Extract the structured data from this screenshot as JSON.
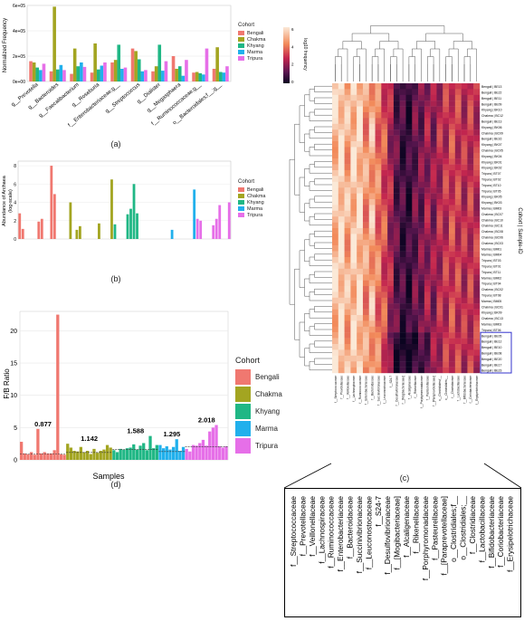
{
  "captions": {
    "a": "(a)",
    "b": "(b)",
    "c": "(c)",
    "d": "(d)"
  },
  "colors": {
    "Bengali": "#f07870",
    "Chakma": "#a3a521",
    "Khyang": "#20b785",
    "Marma": "#21b0ec",
    "Tripura": "#e66fe8",
    "dendro": "#555555",
    "highlight": "#3333cc"
  },
  "cohort_legend": {
    "title": "Cohort",
    "items": [
      "Bengali",
      "Chakma",
      "Khyang",
      "Marma",
      "Tripura"
    ]
  },
  "heat_legend": {
    "title": "log10 frequency",
    "ticks": [
      "6",
      "4",
      "2",
      "0"
    ]
  },
  "heat_axis_title": "Cohort | Sample-ID",
  "chart_data": [
    {
      "id": "a",
      "type": "bar",
      "ylabel": "Normalized Frequency",
      "yticks": [
        "0e+00",
        "2e+05",
        "4e+05",
        "6e+05"
      ],
      "ylim": [
        0,
        600000
      ],
      "categories": [
        "g__Prevotella",
        "g__Bacteroides",
        "g__Faecalibacterium",
        "g__Roseburia",
        "f__Enterobacteriaceae;g__",
        "g__Streptococcus",
        "g__Dialister",
        "g__Megasphaera",
        "f__Ruminococcaceae;g__",
        "o__Bacteroidales;f__;g__"
      ],
      "series": [
        {
          "name": "Bengali",
          "values": [
            160000,
            80000,
            60000,
            70000,
            150000,
            260000,
            80000,
            200000,
            70000,
            100000
          ]
        },
        {
          "name": "Chakma",
          "values": [
            150000,
            590000,
            260000,
            300000,
            170000,
            240000,
            120000,
            100000,
            75000,
            270000
          ]
        },
        {
          "name": "Khyang",
          "values": [
            110000,
            95000,
            120000,
            95000,
            290000,
            175000,
            290000,
            120000,
            65000,
            75000
          ]
        },
        {
          "name": "Marma",
          "values": [
            90000,
            130000,
            150000,
            125000,
            100000,
            80000,
            85000,
            45000,
            55000,
            70000
          ]
        },
        {
          "name": "Tripura",
          "values": [
            140000,
            90000,
            115000,
            150000,
            110000,
            90000,
            160000,
            170000,
            260000,
            120000
          ]
        }
      ]
    },
    {
      "id": "b",
      "type": "bar",
      "ylabel": "Abundance of Archaea\n(log-scale)",
      "yticks": [
        "0",
        "2",
        "4",
        "6",
        "8"
      ],
      "ylim": [
        0,
        8.5
      ],
      "groups": [
        {
          "name": "Bengali",
          "values": [
            2.8,
            1.1,
            0,
            0,
            0,
            0,
            1.9,
            2.2,
            0,
            0,
            8.0,
            4.9,
            0,
            0,
            0
          ]
        },
        {
          "name": "Chakma",
          "values": [
            0,
            4.0,
            0,
            1.0,
            1.4,
            0,
            0,
            0,
            0,
            0,
            1.7,
            0,
            0,
            0,
            6.5
          ]
        },
        {
          "name": "Khyang",
          "values": [
            1.6,
            0,
            0,
            0,
            2.7,
            3.3,
            6.0,
            2.8,
            0,
            0,
            0,
            0,
            0,
            0,
            0
          ]
        },
        {
          "name": "Marma",
          "values": [
            0,
            0,
            0,
            1.0,
            0,
            0,
            0,
            0,
            0,
            0,
            5.4
          ]
        },
        {
          "name": "Tripura",
          "values": [
            2.2,
            2.0,
            0,
            0,
            0,
            1.5,
            2.2,
            3.7,
            0,
            0,
            4.0
          ]
        }
      ]
    },
    {
      "id": "d",
      "type": "bar",
      "xlabel": "Samples",
      "ylabel": "F/B Ratio",
      "yticks": [
        "0",
        "5",
        "10",
        "15",
        "20"
      ],
      "ylim": [
        0,
        23
      ],
      "group_means": [
        {
          "name": "Bengali",
          "label": "0.877"
        },
        {
          "name": "Chakma",
          "label": "1.142"
        },
        {
          "name": "Khyang",
          "label": "1.588"
        },
        {
          "name": "Marma",
          "label": "1.295"
        },
        {
          "name": "Tripura",
          "label": "2.018"
        }
      ],
      "groups": [
        {
          "name": "Bengali",
          "values": [
            2.8,
            1.0,
            0.9,
            1.2,
            0.8,
            4.8,
            1.0,
            1.2,
            1.0,
            1.0,
            1.5,
            22.5,
            0.9,
            0.8
          ]
        },
        {
          "name": "Chakma",
          "values": [
            2.5,
            1.9,
            1.4,
            1.3,
            2.0,
            1.2,
            1.4,
            0.9,
            1.7,
            1.1,
            1.4,
            1.6,
            2.3,
            1.9
          ]
        },
        {
          "name": "Khyang",
          "values": [
            1.5,
            1.2,
            1.7,
            1.6,
            1.8,
            1.9,
            2.4,
            1.6,
            2.2,
            2.6,
            1.5,
            3.7,
            1.8,
            2.3
          ]
        },
        {
          "name": "Marma",
          "values": [
            2.3,
            1.8,
            2.1,
            1.6,
            2.0,
            3.2,
            1.4,
            2.0
          ]
        },
        {
          "name": "Tripura",
          "values": [
            1.7,
            1.3,
            2.3,
            2.2,
            2.6,
            3.1,
            2.2,
            4.4,
            5.0,
            5.4,
            2.1,
            1.9,
            2.1
          ]
        }
      ]
    },
    {
      "id": "c",
      "type": "heatmap",
      "title": "",
      "row_labels": [
        "Bengali | BE13",
        "Bengali | BE22",
        "Bengali | BE11",
        "Bengali | BE09",
        "Khyang | BK10",
        "Chakma | BC12",
        "Bengali | BE13",
        "Khyang | BK06",
        "Chakma | BC09",
        "Bengali | BE16",
        "Khyang | BK07",
        "Chakma | BC05",
        "Khyang | BK04",
        "Khyang | BK01",
        "Khyang | BK02",
        "Tripura | BT07",
        "Tripura | BT02",
        "Tripura | BT10",
        "Tripura | BT05",
        "Khyang | BK05",
        "Khyang | BK03",
        "Marma | BM03",
        "Chakma | BC07",
        "Chakma | BC10",
        "Chakma | BC11",
        "Chakma | BC08",
        "Chakma | BC06",
        "Chakma | BC03",
        "Marma | BM01",
        "Marma | BM04",
        "Tripura | BT03",
        "Tripura | BT01",
        "Tripura | BT11",
        "Marma | BM02",
        "Tripura | BT04",
        "Chakma | BC02",
        "Tripura | BT08",
        "Marma | BM05",
        "Chakma | BC01",
        "Khyang | BK09",
        "Chakma | BC13",
        "Marma | BM03",
        "Tripura | BT06",
        "Bengali | BE05",
        "Bengali | BE12",
        "Bengali | BE10",
        "Bengali | BE08",
        "Bengali | BE20",
        "Bengali | BE17",
        "Bengali | BE23"
      ],
      "col_labels": [
        "f__Streptococcaceae",
        "f__Prevotellaceae",
        "f__Veillonellaceae",
        "f__Lachnospiraceae",
        "f__Ruminococcaceae",
        "f__Enterobacteriaceae",
        "f__Bacteroidaceae",
        "f__Succinivibrionaceae",
        "f__Leuconostocaceae",
        "f__S24-7",
        "f__Desulfovibrionaceae",
        "f__[Mogibacteriaceae]",
        "f__Alcaligenaceae",
        "f__Rikenellaceae",
        "f__Porphyromonadaceae",
        "f__Pasteurellaceae",
        "f__[Paraprevotellaceae]",
        "o__Clostridiales;f__",
        "o__Clostridiales;__",
        "f__Clostridiaceae",
        "f__Lactobacillaceae",
        "f__Bifidobacteriaceae",
        "f__Coriobacteriaceae",
        "f__Erysipelotrichaceae"
      ],
      "column_mean_log10": [
        5.4,
        5.8,
        5.0,
        5.5,
        5.6,
        4.6,
        5.0,
        4.2,
        3.6,
        2.6,
        1.4,
        1.0,
        0.8,
        1.6,
        1.8,
        2.4,
        2.2,
        2.8,
        3.0,
        3.4,
        3.2,
        2.9,
        3.1,
        3.0
      ],
      "highlighted_rows": [
        43,
        49
      ]
    }
  ]
}
